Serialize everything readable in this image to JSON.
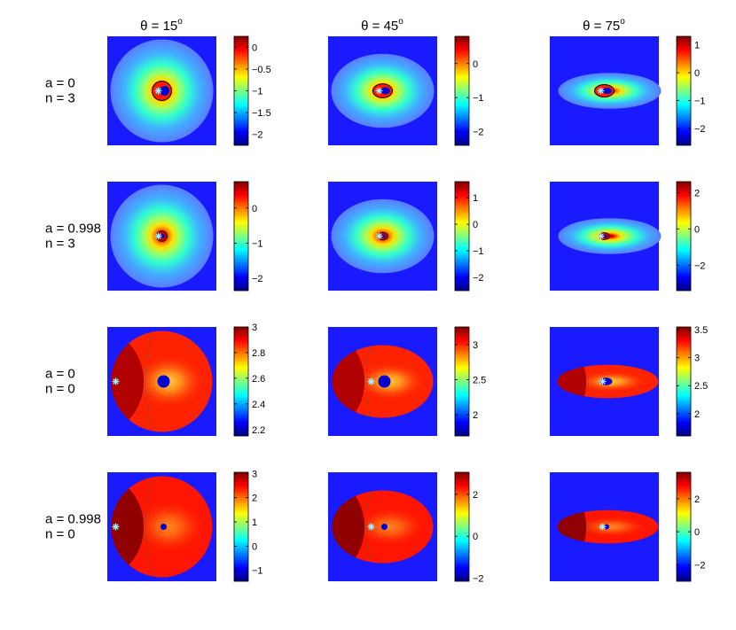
{
  "chart_data": {
    "type": "heatmap",
    "column_titles": [
      {
        "symbol": "θ = ",
        "value": "15",
        "unit": "o"
      },
      {
        "symbol": "θ = ",
        "value": "45",
        "unit": "o"
      },
      {
        "symbol": "θ = ",
        "value": "75",
        "unit": "o"
      }
    ],
    "row_labels": [
      {
        "a": "a = 0",
        "n": "n = 3"
      },
      {
        "a": "a = 0.998",
        "n": "n = 3"
      },
      {
        "a": "a = 0",
        "n": "n = 0"
      },
      {
        "a": "a = 0.998",
        "n": "n = 0"
      }
    ],
    "colormap": "jet",
    "colors": {
      "background": "#1a1aff",
      "marker": "#a8f0ff",
      "contour": "#000000"
    },
    "panels": [
      [
        {
          "clim": [
            -2.25,
            0.25
          ],
          "ticks": [
            "0",
            "−0.5",
            "−1",
            "−1.5",
            "−2"
          ],
          "tick_values": [
            0,
            -0.5,
            -1,
            -1.5,
            -2
          ]
        },
        {
          "clim": [
            -2.4,
            0.8
          ],
          "ticks": [
            "0",
            "−1",
            "−2"
          ],
          "tick_values": [
            0,
            -1,
            -2
          ]
        },
        {
          "clim": [
            -2.6,
            1.3
          ],
          "ticks": [
            "1",
            "0",
            "−1",
            "−2"
          ],
          "tick_values": [
            1,
            0,
            -1,
            -2
          ]
        }
      ],
      [
        {
          "clim": [
            -2.35,
            0.75
          ],
          "ticks": [
            "0",
            "−1",
            "−2"
          ],
          "tick_values": [
            0,
            -1,
            -2
          ]
        },
        {
          "clim": [
            -2.5,
            1.6
          ],
          "ticks": [
            "1",
            "0",
            "−1",
            "−2"
          ],
          "tick_values": [
            1,
            0,
            -1,
            -2
          ]
        },
        {
          "clim": [
            -3.4,
            2.6
          ],
          "ticks": [
            "2",
            "0",
            "−2"
          ],
          "tick_values": [
            2,
            0,
            -2
          ]
        }
      ],
      [
        {
          "clim": [
            2.15,
            3.0
          ],
          "ticks": [
            "3",
            "2.8",
            "2.6",
            "2.4",
            "2.2"
          ],
          "tick_values": [
            3,
            2.8,
            2.6,
            2.4,
            2.2
          ]
        },
        {
          "clim": [
            1.7,
            3.25
          ],
          "ticks": [
            "3",
            "2.5",
            "2"
          ],
          "tick_values": [
            3,
            2.5,
            2
          ]
        },
        {
          "clim": [
            1.6,
            3.55
          ],
          "ticks": [
            "3.5",
            "3",
            "2.5",
            "2"
          ],
          "tick_values": [
            3.5,
            3,
            2.5,
            2
          ]
        }
      ],
      [
        {
          "clim": [
            -1.45,
            3.05
          ],
          "ticks": [
            "3",
            "2",
            "1",
            "0",
            "−1"
          ],
          "tick_values": [
            3,
            2,
            1,
            0,
            -1
          ]
        },
        {
          "clim": [
            -2.15,
            3.05
          ],
          "ticks": [
            "2",
            "0",
            "−2"
          ],
          "tick_values": [
            2,
            0,
            -2
          ]
        },
        {
          "clim": [
            -3.0,
            3.6
          ],
          "ticks": [
            "2",
            "0",
            "−2"
          ],
          "tick_values": [
            2,
            0,
            -2
          ]
        }
      ]
    ]
  }
}
